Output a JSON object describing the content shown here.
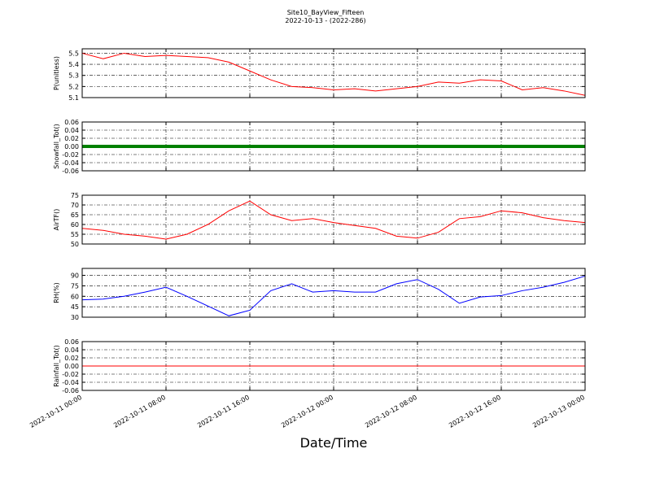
{
  "chart_data": {
    "type": "multi-panel",
    "title": "Site10_BayView_Fifteen",
    "subtitle": "2022-10-13 - (2022-286)",
    "xlabel": "Date/Time",
    "x": [
      "2022-10-11 00:00",
      "2022-10-11 02:00",
      "2022-10-11 04:00",
      "2022-10-11 06:00",
      "2022-10-11 08:00",
      "2022-10-11 10:00",
      "2022-10-11 12:00",
      "2022-10-11 14:00",
      "2022-10-11 16:00",
      "2022-10-11 18:00",
      "2022-10-11 20:00",
      "2022-10-11 22:00",
      "2022-10-12 00:00",
      "2022-10-12 02:00",
      "2022-10-12 04:00",
      "2022-10-12 06:00",
      "2022-10-12 08:00",
      "2022-10-12 10:00",
      "2022-10-12 12:00",
      "2022-10-12 14:00",
      "2022-10-12 16:00",
      "2022-10-12 18:00",
      "2022-10-12 20:00",
      "2022-10-12 22:00",
      "2022-10-13 00:00"
    ],
    "xlim": [
      "2022-10-11 00:00",
      "2022-10-13 00:00"
    ],
    "xticks": [
      "2022-10-11 00:00",
      "2022-10-11 08:00",
      "2022-10-11 16:00",
      "2022-10-12 00:00",
      "2022-10-12 08:00",
      "2022-10-12 16:00",
      "2022-10-13 00:00"
    ],
    "grid": true,
    "panels": [
      {
        "type": "line",
        "ylabel": "P(unitless)",
        "ylim": [
          5.1,
          5.54
        ],
        "yticks": [
          5.1,
          5.2,
          5.3,
          5.4,
          5.5
        ],
        "series": [
          {
            "color": "#ff0000",
            "line_width": 1,
            "values": [
              5.5,
              5.45,
              5.5,
              5.47,
              5.48,
              5.47,
              5.46,
              5.42,
              5.34,
              5.26,
              5.2,
              5.19,
              5.17,
              5.18,
              5.16,
              5.18,
              5.2,
              5.24,
              5.23,
              5.26,
              5.25,
              5.17,
              5.19,
              5.16,
              5.12
            ]
          }
        ]
      },
      {
        "type": "line",
        "ylabel": "Snowfall_Tot()",
        "ylim": [
          -0.06,
          0.06
        ],
        "yticks": [
          -0.06,
          -0.04,
          -0.02,
          {
            "value": 0,
            "label": "0.00"
          },
          0.02,
          0.04,
          0.06
        ],
        "series": [
          {
            "color": "#008000",
            "line_width": 4,
            "values": [
              0,
              0,
              0,
              0,
              0,
              0,
              0,
              0,
              0,
              0,
              0,
              0,
              0,
              0,
              0,
              0,
              0,
              0,
              0,
              0,
              0,
              0,
              0,
              0,
              0
            ]
          }
        ]
      },
      {
        "type": "line",
        "ylabel": "AirTF()",
        "ylim": [
          50,
          75
        ],
        "yticks": [
          50,
          55,
          60,
          65,
          70,
          75
        ],
        "series": [
          {
            "color": "#ff0000",
            "line_width": 1,
            "values": [
              58,
              57,
              55,
              54,
              52.5,
              55,
              60,
              67,
              72,
              65,
              62,
              63,
              61,
              59.5,
              58,
              54,
              53,
              56,
              63,
              64,
              67,
              66,
              63.5,
              62,
              61
            ]
          }
        ]
      },
      {
        "type": "line",
        "ylabel": "RH(%)",
        "ylim": [
          30,
          100
        ],
        "yticks": [
          30,
          45,
          60,
          75,
          90
        ],
        "series": [
          {
            "color": "#0000ff",
            "line_width": 1,
            "values": [
              55,
              56,
              60,
              66,
              73,
              60,
              46,
              32,
              40,
              68,
              78,
              66,
              68,
              66,
              66,
              78,
              84,
              70,
              50,
              59,
              61,
              68,
              73,
              80,
              89
            ]
          }
        ]
      },
      {
        "type": "line",
        "ylabel": "Rainfall_Tot()",
        "ylim": [
          -0.06,
          0.06
        ],
        "yticks": [
          -0.06,
          -0.04,
          -0.02,
          {
            "value": 0,
            "label": "0.00"
          },
          0.02,
          0.04,
          0.06
        ],
        "series": [
          {
            "color": "#ff0000",
            "line_width": 1,
            "values": [
              0,
              0,
              0,
              0,
              0,
              0,
              0,
              0,
              0,
              0,
              0,
              0,
              0,
              0,
              0,
              0,
              0,
              0,
              0,
              0,
              0,
              0,
              0,
              0,
              0
            ]
          }
        ]
      }
    ]
  }
}
